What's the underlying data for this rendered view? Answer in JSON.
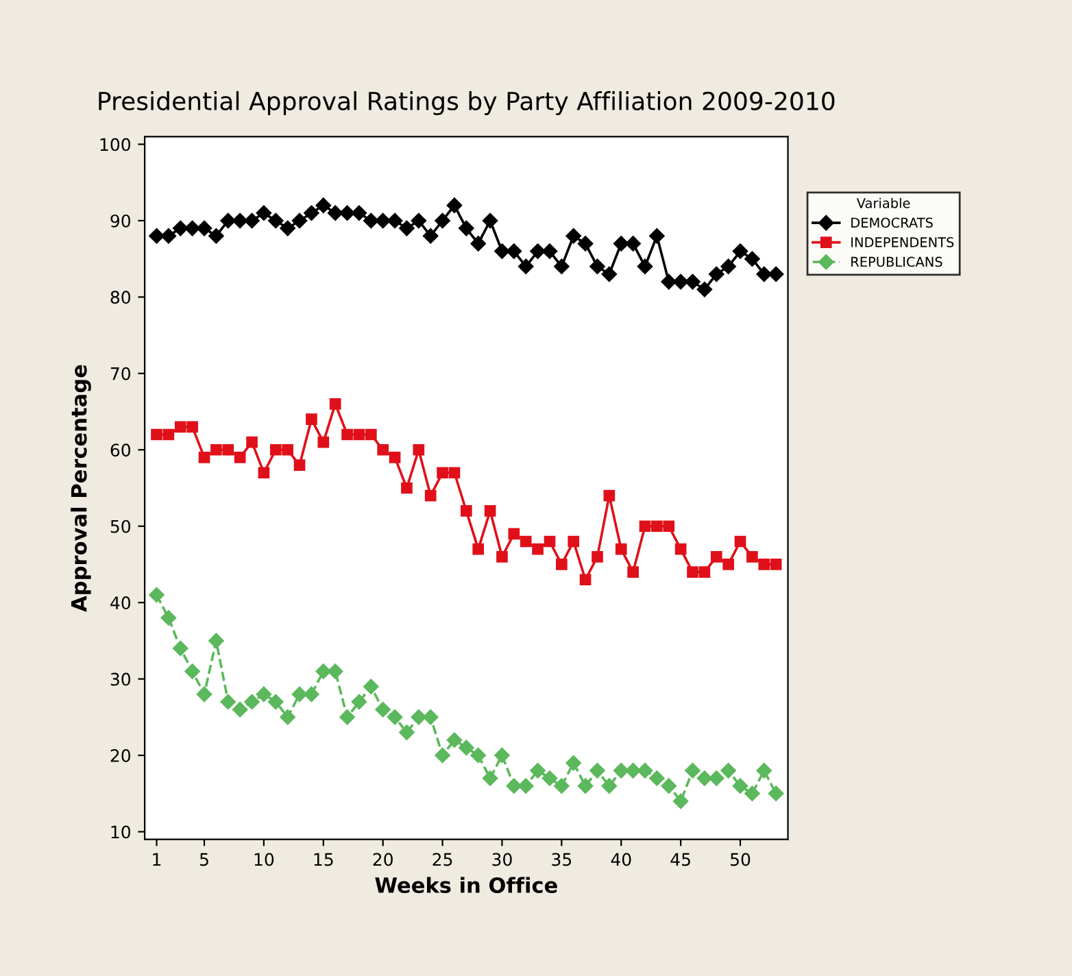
{
  "chart_data": {
    "type": "line",
    "title": "Presidential Approval Ratings by Party Affiliation 2009-2010",
    "xlabel": "Weeks in Office",
    "ylabel": "Approval Percentage",
    "legend_title": "Variable",
    "legend": "top right",
    "grid": false,
    "x": [
      1,
      2,
      3,
      4,
      5,
      6,
      7,
      8,
      9,
      10,
      11,
      12,
      13,
      14,
      15,
      16,
      17,
      18,
      19,
      20,
      21,
      22,
      23,
      24,
      25,
      26,
      27,
      28,
      29,
      30,
      31,
      32,
      33,
      34,
      35,
      36,
      37,
      38,
      39,
      40,
      41,
      42,
      43,
      44,
      45,
      46,
      47,
      48,
      49,
      50,
      51,
      52,
      53
    ],
    "xlim": [
      0,
      54
    ],
    "xticks": [
      1,
      5,
      10,
      15,
      20,
      25,
      30,
      35,
      40,
      45,
      50
    ],
    "ylim": [
      9,
      101
    ],
    "yticks": [
      10,
      20,
      30,
      40,
      50,
      60,
      70,
      80,
      90,
      100
    ],
    "series": [
      {
        "name": "DEMOCRATS",
        "color": "#000000",
        "marker": "diamond",
        "line_style": "solid",
        "values": [
          88,
          88,
          89,
          89,
          89,
          88,
          90,
          90,
          90,
          91,
          90,
          89,
          90,
          91,
          92,
          91,
          91,
          91,
          90,
          90,
          90,
          89,
          90,
          88,
          90,
          92,
          89,
          87,
          90,
          86,
          86,
          84,
          86,
          86,
          84,
          88,
          87,
          84,
          83,
          87,
          87,
          84,
          88,
          82,
          82,
          82,
          81,
          83,
          84,
          86,
          85,
          83,
          83
        ]
      },
      {
        "name": "INDEPENDENTS",
        "color": "#e0101a",
        "marker": "square",
        "line_style": "solid",
        "values": [
          62,
          62,
          63,
          63,
          59,
          60,
          60,
          59,
          61,
          57,
          60,
          60,
          58,
          64,
          61,
          66,
          62,
          62,
          62,
          60,
          59,
          55,
          60,
          54,
          57,
          57,
          52,
          47,
          52,
          46,
          49,
          48,
          47,
          48,
          45,
          48,
          43,
          46,
          54,
          47,
          44,
          50,
          50,
          50,
          47,
          44,
          44,
          46,
          45,
          48,
          46,
          45,
          45
        ]
      },
      {
        "name": "REPUBLICANS",
        "color": "#5cb85c",
        "marker": "diamond",
        "line_style": "dashed",
        "values": [
          41,
          38,
          34,
          31,
          28,
          35,
          27,
          26,
          27,
          28,
          27,
          25,
          28,
          28,
          31,
          31,
          25,
          27,
          29,
          26,
          25,
          23,
          25,
          25,
          20,
          22,
          21,
          20,
          17,
          20,
          16,
          16,
          18,
          17,
          16,
          19,
          16,
          18,
          16,
          18,
          18,
          18,
          17,
          16,
          14,
          18,
          17,
          17,
          18,
          16,
          15,
          18,
          15
        ]
      }
    ]
  }
}
